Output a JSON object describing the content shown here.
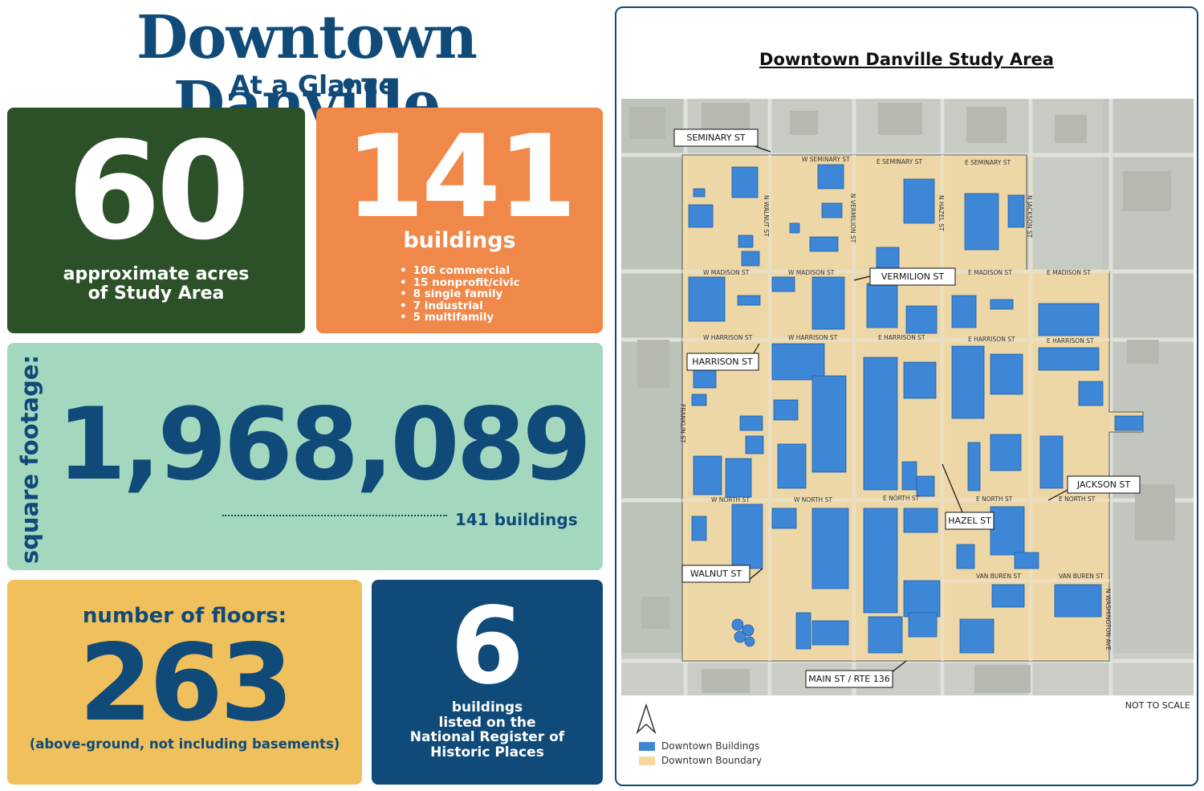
{
  "header": {
    "title": "Downtown Danville",
    "subtitle": "At a Glance"
  },
  "acres": {
    "value": "60",
    "caption_line1": "approximate acres",
    "caption_line2": "of Study Area"
  },
  "buildings": {
    "value": "141",
    "label": "buildings",
    "breakdown": [
      "106 commercial",
      "15 nonprofit/civic",
      "8 single family",
      "7 industrial",
      "5 multifamily"
    ]
  },
  "square_footage": {
    "side_label": "square footage:",
    "value": "1,968,089",
    "caption": "141 buildings"
  },
  "floors": {
    "label": "number of floors:",
    "value": "263",
    "caption": "(above-ground, not including basements)"
  },
  "register": {
    "value": "6",
    "caption_lines": [
      "buildings",
      "listed on the",
      "National Register of",
      "Historic Places"
    ]
  },
  "map": {
    "title": "Downtown Danville Study Area",
    "not_to_scale": "NOT TO SCALE",
    "street_labels": [
      "SEMINARY ST",
      "VERMILION ST",
      "HARRISON ST",
      "HAZEL ST",
      "JACKSON ST",
      "WALNUT ST",
      "MAIN ST / RTE 136"
    ],
    "legend": [
      {
        "label": "Downtown Buildings",
        "color": "#3d87d6"
      },
      {
        "label": "Downtown Boundary",
        "color": "#f7d9a0"
      }
    ],
    "small_labels": [
      "W SEMINARY ST",
      "E SEMINARY ST",
      "E SEMINARY ST",
      "W MADISON ST",
      "W MADISON ST",
      "E MADISON ST",
      "E MADISON ST",
      "W HARRISON ST",
      "W HARRISON ST",
      "E HARRISON ST",
      "E HARRISON ST",
      "E HARRISON ST",
      "W NORTH ST",
      "W NORTH ST",
      "E NORTH ST",
      "E NORTH ST",
      "E NORTH ST",
      "VAN BUREN ST",
      "VAN BUREN ST",
      "N WALNUT ST",
      "N VERMILION ST",
      "N HAZEL ST",
      "N JACKSON ST",
      "FRANKLIN ST",
      "N WASHINGTON AVE"
    ]
  },
  "colors": {
    "navy": "#0f4a78",
    "forest": "#2c5128",
    "orange": "#f0884a",
    "mint": "#a3d8bf",
    "gold": "#f0c05c"
  }
}
